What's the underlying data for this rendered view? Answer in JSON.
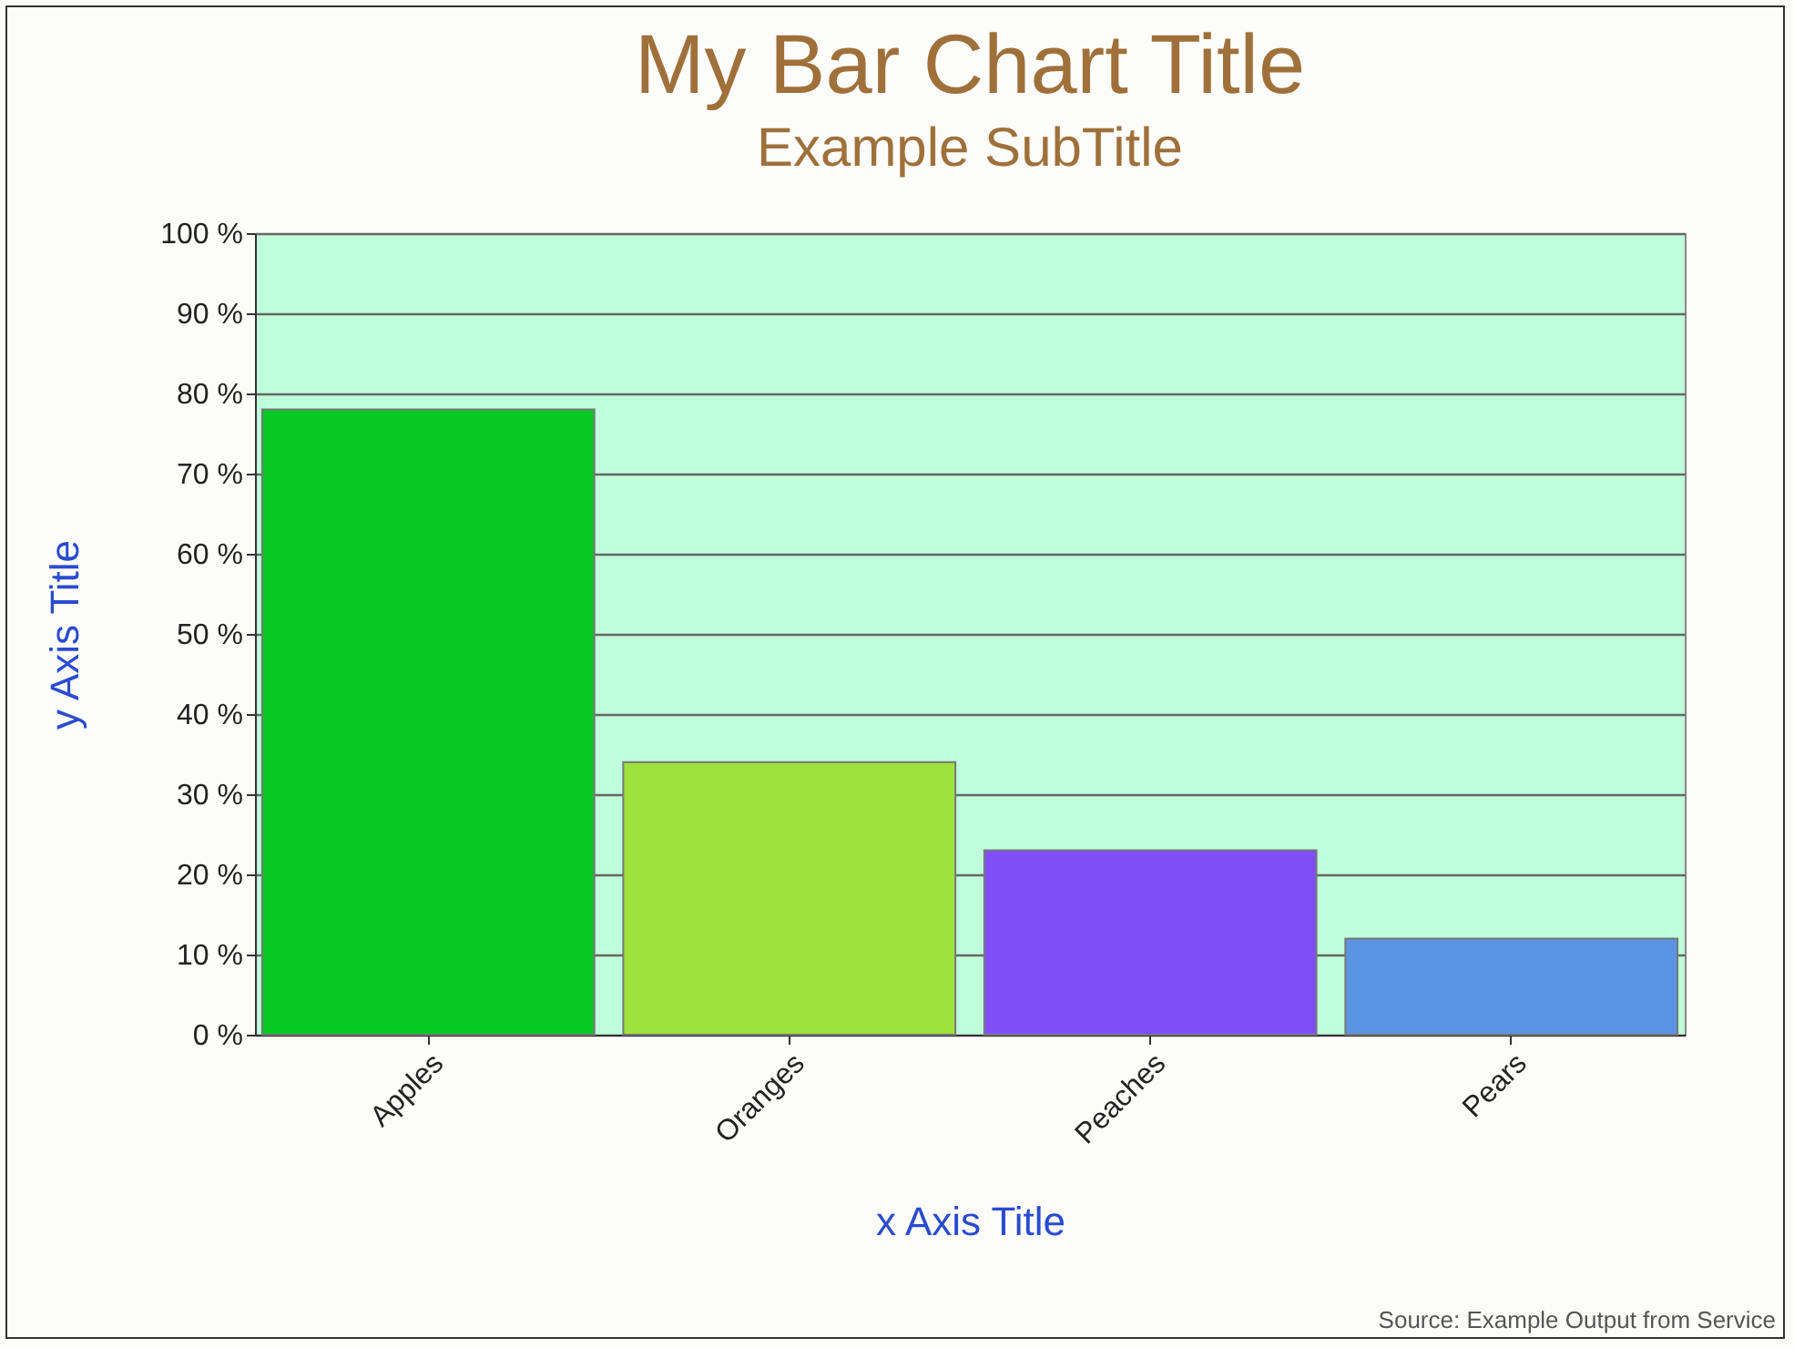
{
  "chart_data": {
    "type": "bar",
    "title": "My Bar Chart Title",
    "subtitle": "Example SubTitle",
    "xlabel": "x Axis Title",
    "ylabel": "y Axis Title",
    "categories": [
      "Apples",
      "Oranges",
      "Peaches",
      "Pears"
    ],
    "values": [
      78,
      34,
      23,
      12
    ],
    "colors": [
      "#08c822",
      "#9ee23c",
      "#804ef8",
      "#5c94e4"
    ],
    "ylim": [
      0,
      100
    ],
    "yticks": [
      {
        "value": 0,
        "label": "0 %"
      },
      {
        "value": 10,
        "label": "10 %"
      },
      {
        "value": 20,
        "label": "20 %"
      },
      {
        "value": 30,
        "label": "30 %"
      },
      {
        "value": 40,
        "label": "40 %"
      },
      {
        "value": 50,
        "label": "50 %"
      },
      {
        "value": 60,
        "label": "60 %"
      },
      {
        "value": 70,
        "label": "70 %"
      },
      {
        "value": 80,
        "label": "80 %"
      },
      {
        "value": 90,
        "label": "90 %"
      },
      {
        "value": 100,
        "label": "100 %"
      }
    ],
    "grid": "y",
    "annotations": [
      "Source: Example Output from Service"
    ]
  }
}
